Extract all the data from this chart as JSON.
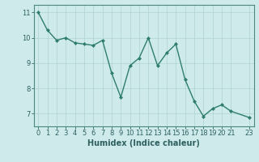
{
  "x": [
    0,
    1,
    2,
    3,
    4,
    5,
    6,
    7,
    8,
    9,
    10,
    11,
    12,
    13,
    14,
    15,
    16,
    17,
    18,
    19,
    20,
    21,
    23
  ],
  "y": [
    11.0,
    10.3,
    9.9,
    10.0,
    9.8,
    9.75,
    9.7,
    9.9,
    8.6,
    7.65,
    8.9,
    9.2,
    10.0,
    8.9,
    9.4,
    9.75,
    8.35,
    7.5,
    6.9,
    7.2,
    7.35,
    7.1,
    6.85
  ],
  "line_color": "#2e7d6e",
  "marker": "D",
  "marker_size": 2.0,
  "linewidth": 1.0,
  "xlabel": "Humidex (Indice chaleur)",
  "ylim": [
    6.5,
    11.3
  ],
  "xlim": [
    -0.5,
    23.5
  ],
  "yticks": [
    7,
    8,
    9,
    10,
    11
  ],
  "xticks": [
    0,
    1,
    2,
    3,
    4,
    5,
    6,
    7,
    8,
    9,
    10,
    11,
    12,
    13,
    14,
    15,
    16,
    17,
    18,
    19,
    20,
    21,
    23
  ],
  "background_color": "#ceeaea",
  "grid_color": "#aed4d2",
  "tick_fontsize": 6.0,
  "xlabel_fontsize": 7.0,
  "xlabel_fontweight": "bold"
}
